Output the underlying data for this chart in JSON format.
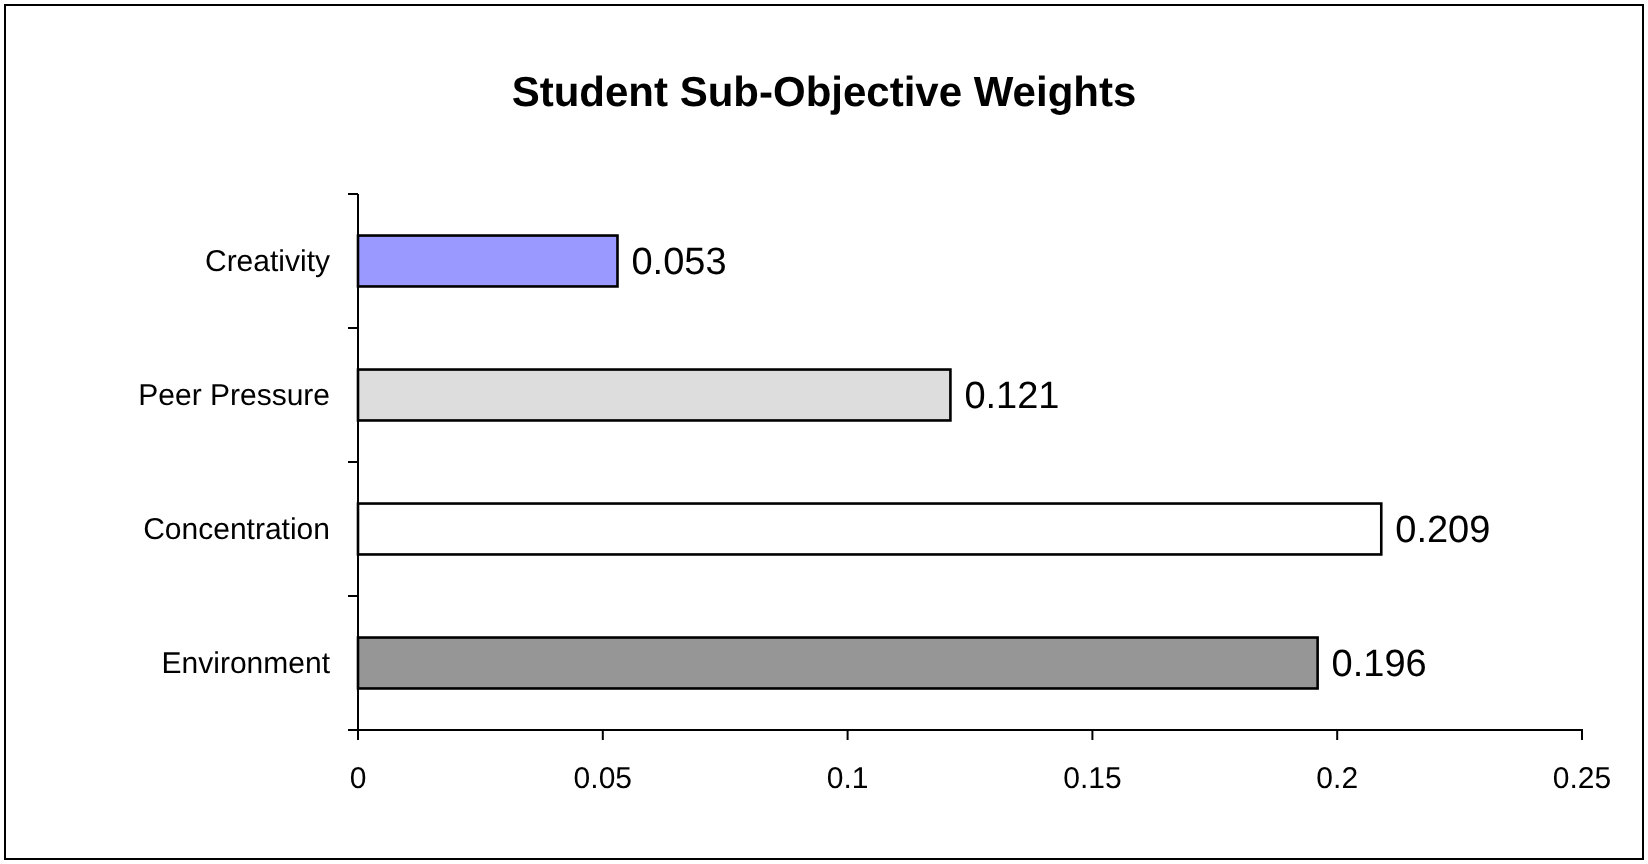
{
  "chart_data": {
    "type": "bar",
    "orientation": "horizontal",
    "title": "Student Sub-Objective Weights",
    "categories": [
      "Creativity",
      "Peer Pressure",
      "Concentration",
      "Environment"
    ],
    "values": [
      0.053,
      0.121,
      0.209,
      0.196
    ],
    "colors": [
      "#9999ff",
      "#dddddd",
      "#ffffff",
      "#969696"
    ],
    "xlim": [
      0,
      0.25
    ],
    "xticks": [
      0,
      0.05,
      0.1,
      0.15,
      0.2,
      0.25
    ],
    "data_labels": true,
    "grid": false
  }
}
